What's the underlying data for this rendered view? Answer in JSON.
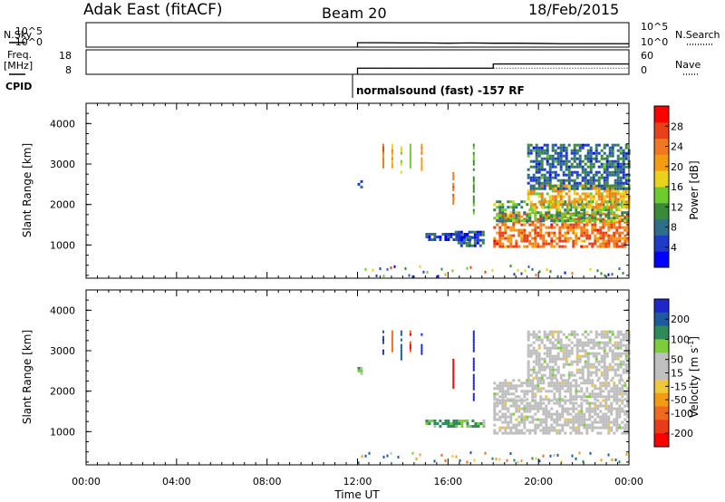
{
  "header": {
    "station": "Adak East (fitACF)",
    "beam": "Beam 20",
    "date": "18/Feb/2015"
  },
  "labels": {
    "nsky": "N.Sky",
    "nsearch": "N.Search",
    "freq_line1": "Freq.",
    "freq_line2": "[MHz]",
    "nave": "Nave",
    "cpid": "CPID",
    "cpid_value": "normalsound (fast) -157 RF",
    "xlabel": "Time UT",
    "ylabel": "Slant Range [km]",
    "power_label": "Power [dB]",
    "velocity_label": "Velocity [m s",
    "velocity_unit_exp": "-1",
    "velocity_unit_close": "]"
  },
  "colors": {
    "power_scale": [
      "#0000ff",
      "#1e3cc8",
      "#2f6e8a",
      "#3a8a3a",
      "#6ecb2e",
      "#e8d21a",
      "#f39c12",
      "#f0781e",
      "#e84018",
      "#ff0000"
    ],
    "velocity_scale": [
      "#1e28c8",
      "#1e5aa0",
      "#2e8a5a",
      "#7ccc3c",
      "#c0c0c0",
      "#c0c0c0",
      "#f0c83c",
      "#f39c12",
      "#f06a1e",
      "#e83c18",
      "#ff0000"
    ],
    "velocity_ground": "#bebebe"
  },
  "chart_data": [
    {
      "type": "line",
      "name": "noise-panel",
      "left_ticks": [
        "10^5",
        "10^0"
      ],
      "right_ticks": [
        "10^5",
        "10^0"
      ],
      "series": [
        {
          "name": "N.Sky",
          "x": [
            "12:00",
            "13:00",
            "14:00",
            "15:00",
            "16:00",
            "17:00",
            "18:00",
            "19:00",
            "20:00",
            "21:00",
            "22:00",
            "23:00",
            "24:00"
          ],
          "values_log10": [
            0.9,
            0.9,
            0.85,
            0.85,
            0.8,
            0.85,
            0.8,
            0.8,
            0.75,
            0.7,
            0.7,
            0.7,
            0.7
          ]
        },
        {
          "name": "N.Search",
          "x": [
            "12:00",
            "24:00"
          ],
          "values_log10": [
            0.9,
            0.7
          ]
        }
      ],
      "xlim": [
        "00:00",
        "24:00"
      ]
    },
    {
      "type": "line",
      "name": "freq-nave-panel",
      "left_ticks": [
        "18",
        "8"
      ],
      "right_ticks": [
        "60",
        "0"
      ],
      "series": [
        {
          "name": "Freq.",
          "unit": "MHz",
          "x": [
            "12:00",
            "18:00",
            "18:00",
            "24:00"
          ],
          "values": [
            10.5,
            10.5,
            12.2,
            12.2
          ]
        },
        {
          "name": "Nave",
          "x": [
            "12:00",
            "24:00"
          ],
          "values": [
            15,
            15
          ]
        }
      ],
      "xlim": [
        "00:00",
        "24:00"
      ]
    },
    {
      "type": "heatmap",
      "name": "power-rti",
      "xlabel": "Time UT",
      "ylabel": "Slant Range [km]",
      "xticks": [
        "00:00",
        "04:00",
        "08:00",
        "12:00",
        "16:00",
        "20:00",
        "00:00"
      ],
      "yticks": [
        1000,
        2000,
        3000,
        4000
      ],
      "xlim_hours": [
        0,
        24
      ],
      "ylim_km": [
        180,
        4500
      ],
      "colorbar": {
        "label": "Power [dB]",
        "ticks": [
          4,
          8,
          12,
          16,
          20,
          24,
          28
        ],
        "range": [
          0,
          32
        ]
      },
      "regions": [
        {
          "t0": 12.0,
          "t1": 12.2,
          "r0": 2400,
          "r1": 2600,
          "value": 6
        },
        {
          "t0": 15.0,
          "t1": 17.0,
          "r0": 1150,
          "r1": 1300,
          "value": 5
        },
        {
          "t0": 16.3,
          "t1": 17.6,
          "r0": 950,
          "r1": 1350,
          "value": 6
        },
        {
          "t0": 18.0,
          "t1": 24.0,
          "r0": 950,
          "r1": 1800,
          "value": 24
        },
        {
          "t0": 18.0,
          "t1": 24.0,
          "r0": 1600,
          "r1": 2100,
          "value": 12
        },
        {
          "t0": 19.5,
          "t1": 24.0,
          "r0": 1900,
          "r1": 2500,
          "value": 20
        },
        {
          "t0": 19.5,
          "t1": 24.0,
          "r0": 2400,
          "r1": 3500,
          "value": 8
        }
      ],
      "streaks": [
        {
          "t": 13.1,
          "r0": 2900,
          "r1": 3500,
          "value": 24
        },
        {
          "t": 13.5,
          "r0": 2900,
          "r1": 3500,
          "value": 20
        },
        {
          "t": 13.9,
          "r0": 2800,
          "r1": 3500,
          "value": 18
        },
        {
          "t": 14.3,
          "r0": 2900,
          "r1": 3500,
          "value": 14
        },
        {
          "t": 14.8,
          "r0": 2800,
          "r1": 3500,
          "value": 22
        },
        {
          "t": 16.2,
          "r0": 2000,
          "r1": 2800,
          "value": 26
        },
        {
          "t": 17.1,
          "r0": 1800,
          "r1": 3500,
          "value": 12
        }
      ]
    },
    {
      "type": "heatmap",
      "name": "velocity-rti",
      "xlabel": "Time UT",
      "ylabel": "Slant Range [km]",
      "xticks": [
        "00:00",
        "04:00",
        "08:00",
        "12:00",
        "16:00",
        "20:00",
        "00:00"
      ],
      "yticks": [
        1000,
        2000,
        3000,
        4000
      ],
      "xlim_hours": [
        0,
        24
      ],
      "ylim_km": [
        180,
        4500
      ],
      "colorbar": {
        "label": "Velocity [m s-1]",
        "ticks": [
          200,
          100,
          50,
          15,
          -15,
          -50,
          -100,
          -200
        ]
      },
      "regions": [
        {
          "t0": 12.0,
          "t1": 12.2,
          "r0": 2400,
          "r1": 2600,
          "value": 15
        },
        {
          "t0": 15.0,
          "t1": 17.6,
          "r0": 1100,
          "r1": 1300,
          "value": 40
        },
        {
          "t0": 18.0,
          "t1": 24.0,
          "r0": 950,
          "r1": 1800,
          "value": 0
        },
        {
          "t0": 18.0,
          "t1": 24.0,
          "r0": 1800,
          "r1": 2300,
          "value": 0
        },
        {
          "t0": 19.5,
          "t1": 24.0,
          "r0": 2300,
          "r1": 3500,
          "value": 0
        }
      ],
      "streaks": [
        {
          "t": 13.1,
          "r0": 2900,
          "r1": 3500,
          "value": 150
        },
        {
          "t": 13.5,
          "r0": 2900,
          "r1": 3500,
          "value": -80
        },
        {
          "t": 13.9,
          "r0": 2800,
          "r1": 3500,
          "value": 120
        },
        {
          "t": 14.3,
          "r0": 2900,
          "r1": 3500,
          "value": -150
        },
        {
          "t": 14.8,
          "r0": 2800,
          "r1": 3500,
          "value": 200
        },
        {
          "t": 16.2,
          "r0": 2000,
          "r1": 2800,
          "value": -200
        },
        {
          "t": 17.1,
          "r0": 1800,
          "r1": 3500,
          "value": 180
        }
      ]
    }
  ]
}
